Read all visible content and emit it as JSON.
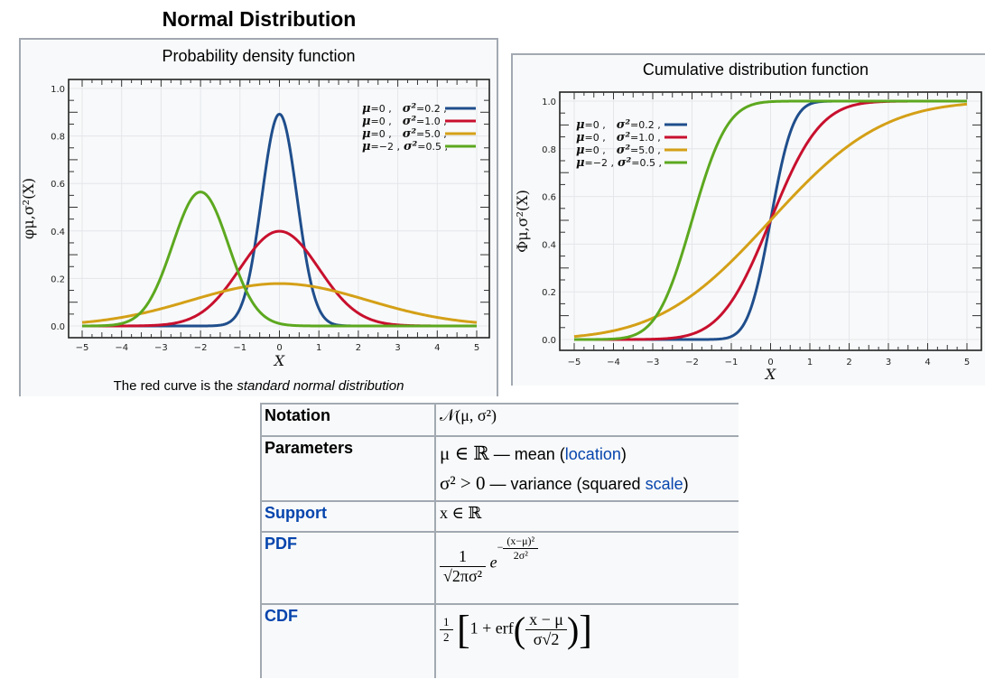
{
  "page": {
    "title": "Normal Distribution"
  },
  "pdf_panel": {
    "title": "Probability density function",
    "caption_prefix": "The red curve is the ",
    "caption_italic": "standard normal distribution"
  },
  "cdf_panel": {
    "title": "Cumulative distribution function"
  },
  "chart_data": [
    {
      "type": "line",
      "title": "Probability density function",
      "xlabel": "X",
      "ylabel": "φμ,σ²(X)",
      "xlim": [
        -5,
        5
      ],
      "ylim": [
        0,
        1.0
      ],
      "xticks": [
        "−5",
        "−4",
        "−3",
        "−2",
        "−1",
        "0",
        "1",
        "2",
        "3",
        "4",
        "5"
      ],
      "yticks": [
        "0.0",
        "0.2",
        "0.4",
        "0.6",
        "0.8",
        "1.0"
      ],
      "grid": true,
      "legend_position": "top-right",
      "function": "pdf",
      "series": [
        {
          "name": "μ=0, σ²=0.2,",
          "mu": 0,
          "variance": 0.2,
          "color": "#1f4e8c",
          "peak": 0.89
        },
        {
          "name": "μ=0, σ²=1.0,",
          "mu": 0,
          "variance": 1.0,
          "color": "#c8102e",
          "peak": 0.4
        },
        {
          "name": "μ=0, σ²=5.0,",
          "mu": 0,
          "variance": 5.0,
          "color": "#d4a017",
          "peak": 0.18
        },
        {
          "name": "μ=−2, σ²=0.5,",
          "mu": -2,
          "variance": 0.5,
          "color": "#5ca81f",
          "peak": 0.56
        }
      ],
      "legend": [
        {
          "mu_label": "μ",
          "mu_value": "=0 ,",
          "var_label": "σ²",
          "var_value": "=0.2 ,"
        },
        {
          "mu_label": "μ",
          "mu_value": "=0 ,",
          "var_label": "σ²",
          "var_value": "=1.0 ,"
        },
        {
          "mu_label": "μ",
          "mu_value": "=0 ,",
          "var_label": "σ²",
          "var_value": "=5.0 ,"
        },
        {
          "mu_label": "μ",
          "mu_value": "=−2 ,",
          "var_label": "σ²",
          "var_value": "=0.5 ,"
        }
      ]
    },
    {
      "type": "line",
      "title": "Cumulative distribution function",
      "xlabel": "X",
      "ylabel": "Φμ,σ²(X)",
      "xlim": [
        -5,
        5
      ],
      "ylim": [
        0,
        1.0
      ],
      "xticks": [
        "−5",
        "−4",
        "−3",
        "−2",
        "−1",
        "0",
        "1",
        "2",
        "3",
        "4",
        "5"
      ],
      "yticks": [
        "0.0",
        "0.2",
        "0.4",
        "0.6",
        "0.8",
        "1.0"
      ],
      "grid": true,
      "legend_position": "top-left",
      "function": "cdf",
      "series": [
        {
          "name": "μ=0, σ²=0.2,",
          "mu": 0,
          "variance": 0.2,
          "color": "#1f4e8c"
        },
        {
          "name": "μ=0, σ²=1.0,",
          "mu": 0,
          "variance": 1.0,
          "color": "#c8102e"
        },
        {
          "name": "μ=0, σ²=5.0,",
          "mu": 0,
          "variance": 5.0,
          "color": "#d4a017"
        },
        {
          "name": "μ=−2, σ²=0.5,",
          "mu": -2,
          "variance": 0.5,
          "color": "#5ca81f"
        }
      ],
      "legend": [
        {
          "mu_label": "μ",
          "mu_value": "=0 ,",
          "var_label": "σ²",
          "var_value": "=0.2 ,"
        },
        {
          "mu_label": "μ",
          "mu_value": "=0 ,",
          "var_label": "σ²",
          "var_value": "=1.0 ,"
        },
        {
          "mu_label": "μ",
          "mu_value": "=0 ,",
          "var_label": "σ²",
          "var_value": "=5.0 ,"
        },
        {
          "mu_label": "μ",
          "mu_value": "=−2 ,",
          "var_label": "σ²",
          "var_value": "=0.5 ,"
        }
      ]
    }
  ],
  "infobox": {
    "rows": [
      {
        "label": "Notation",
        "value": "𝒩(μ, σ²)"
      },
      {
        "label": "Parameters",
        "line1_math": "μ ∈ ℝ",
        "line1_text": " — mean (",
        "line1_link": "location",
        "line1_end": ")",
        "line2_math": "σ² > 0",
        "line2_text": " — variance (squared ",
        "line2_link": "scale",
        "line2_end": ")"
      },
      {
        "label": "Support",
        "value": "x ∈ ℝ"
      },
      {
        "label": "PDF",
        "numerator": "1",
        "denominator": "√2πσ²",
        "base": "e",
        "exp_sign": "−",
        "exp_num": "(x−μ)²",
        "exp_den": "2σ²"
      },
      {
        "label": "CDF",
        "half_num": "1",
        "half_den": "2",
        "open": "[",
        "body": "1 + erf",
        "frac_num": "x − μ",
        "frac_den": "σ√2",
        "close": "]"
      }
    ]
  },
  "colors": {
    "link": "#0645ad",
    "panel_bg": "#f8f9fa",
    "border": "#a2a9b1"
  }
}
